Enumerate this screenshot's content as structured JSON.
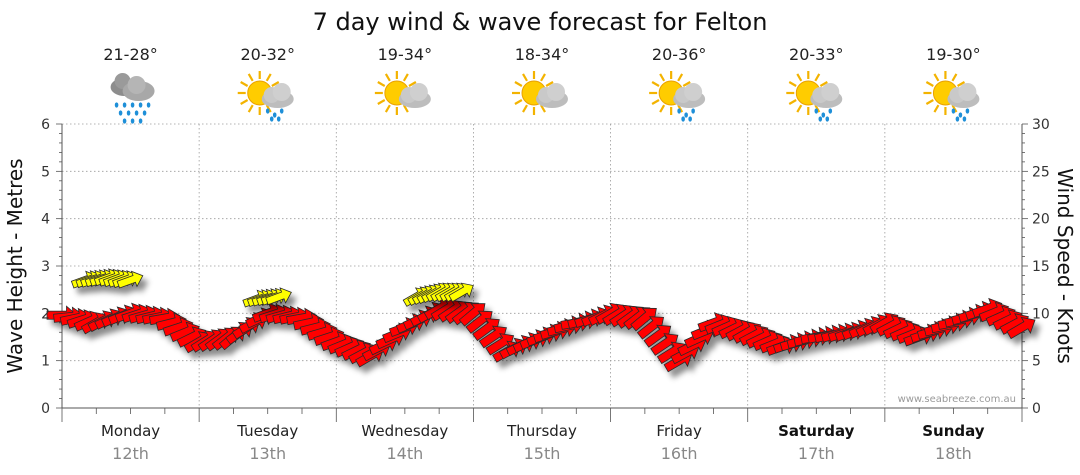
{
  "chart_data": {
    "type": "line",
    "title": "7 day wind & wave forecast for Felton",
    "y_left_label": "Wave Height - Metres",
    "y_right_label": "Wind Speed - Knots",
    "y_left_range": [
      0,
      6
    ],
    "y_left_ticks": [
      "0",
      "1",
      "2",
      "3",
      "4",
      "5",
      "6"
    ],
    "y_right_range": [
      0,
      30
    ],
    "y_right_ticks": [
      "0",
      "5",
      "10",
      "15",
      "20",
      "25",
      "30"
    ],
    "grid": true,
    "watermark": "www.seabreeze.com.au",
    "days": [
      {
        "day": "Monday",
        "date": "12th",
        "temp": "21-28°",
        "icon": "rain-cloud-icon",
        "bold": false
      },
      {
        "day": "Tuesday",
        "date": "13th",
        "temp": "20-32°",
        "icon": "sun-cloud-rain-icon",
        "bold": false
      },
      {
        "day": "Wednesday",
        "date": "14th",
        "temp": "19-34°",
        "icon": "sun-cloud-icon",
        "bold": false
      },
      {
        "day": "Thursday",
        "date": "15th",
        "temp": "18-34°",
        "icon": "sun-cloud-icon",
        "bold": false
      },
      {
        "day": "Friday",
        "date": "16th",
        "temp": "20-36°",
        "icon": "sun-cloud-rain-icon",
        "bold": false
      },
      {
        "day": "Saturday",
        "date": "17th",
        "temp": "20-33°",
        "icon": "sun-cloud-rain-icon",
        "bold": true
      },
      {
        "day": "Sunday",
        "date": "18th",
        "temp": "19-30°",
        "icon": "sun-cloud-rain-icon",
        "bold": true
      }
    ],
    "colors": {
      "wind_arrow": "#ff0000",
      "wave_arrow": "#ffff00",
      "arrow_outline": "#333333"
    },
    "wind_series": {
      "name": "",
      "x_hours": [
        0,
        6,
        12,
        18,
        24,
        30,
        36,
        42,
        48,
        54,
        60,
        66,
        72,
        78,
        84,
        90,
        96,
        102,
        108,
        114,
        120,
        126,
        132,
        138,
        144,
        150,
        156,
        162,
        168
      ],
      "knots": [
        9.8,
        9,
        10,
        9.5,
        7,
        7.5,
        10,
        9.5,
        7,
        5.5,
        8.5,
        10.5,
        10,
        6,
        7.5,
        9,
        10,
        9.5,
        5,
        9,
        8,
        6.5,
        7.5,
        8,
        9,
        7.5,
        9,
        10.5,
        8.5
      ],
      "direction_deg": [
        270,
        240,
        250,
        260,
        240,
        230,
        250,
        260,
        250,
        240,
        250,
        240,
        230,
        240,
        250,
        260,
        240,
        230,
        240,
        250,
        240,
        250,
        260,
        250,
        240,
        250,
        260,
        250,
        240
      ]
    },
    "wave_series": {
      "name": "",
      "x_hours": [
        4,
        8,
        12,
        34,
        38,
        62,
        66,
        70
      ],
      "metres": [
        2.7,
        2.75,
        2.7,
        2.3,
        2.35,
        2.35,
        2.45,
        2.45
      ],
      "direction_deg": [
        250,
        250,
        250,
        250,
        250,
        240,
        240,
        240
      ]
    }
  }
}
